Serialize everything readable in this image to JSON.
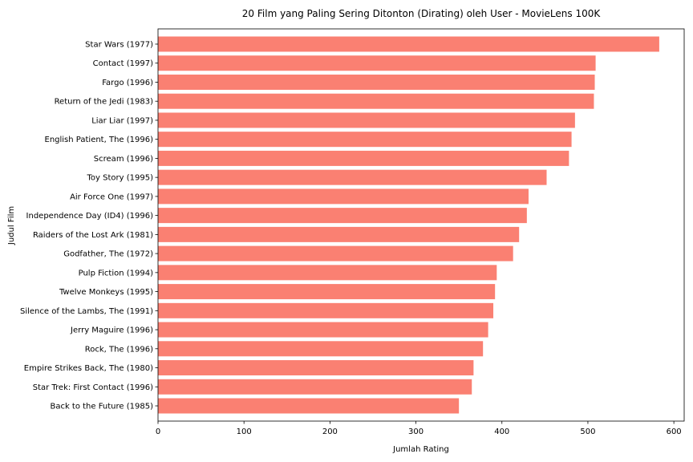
{
  "chart_data": {
    "type": "bar",
    "orientation": "horizontal",
    "title": "20 Film yang Paling Sering Ditonton (Dirating) oleh User - MovieLens 100K",
    "xlabel": "Jumlah Rating",
    "ylabel": "Judul Film",
    "xlim": [
      0,
      612
    ],
    "xticks": [
      0,
      100,
      200,
      300,
      400,
      500,
      600
    ],
    "grid": false,
    "bar_color": "#fa8072",
    "categories": [
      "Star Wars (1977)",
      "Contact (1997)",
      "Fargo (1996)",
      "Return of the Jedi (1983)",
      "Liar Liar (1997)",
      "English Patient, The (1996)",
      "Scream (1996)",
      "Toy Story (1995)",
      "Air Force One (1997)",
      "Independence Day (ID4) (1996)",
      "Raiders of the Lost Ark (1981)",
      "Godfather, The (1972)",
      "Pulp Fiction (1994)",
      "Twelve Monkeys (1995)",
      "Silence of the Lambs, The (1991)",
      "Jerry Maguire (1996)",
      "Rock, The (1996)",
      "Empire Strikes Back, The (1980)",
      "Star Trek: First Contact (1996)",
      "Back to the Future (1985)"
    ],
    "values": [
      583,
      509,
      508,
      507,
      485,
      481,
      478,
      452,
      431,
      429,
      420,
      413,
      394,
      392,
      390,
      384,
      378,
      367,
      365,
      350
    ]
  }
}
